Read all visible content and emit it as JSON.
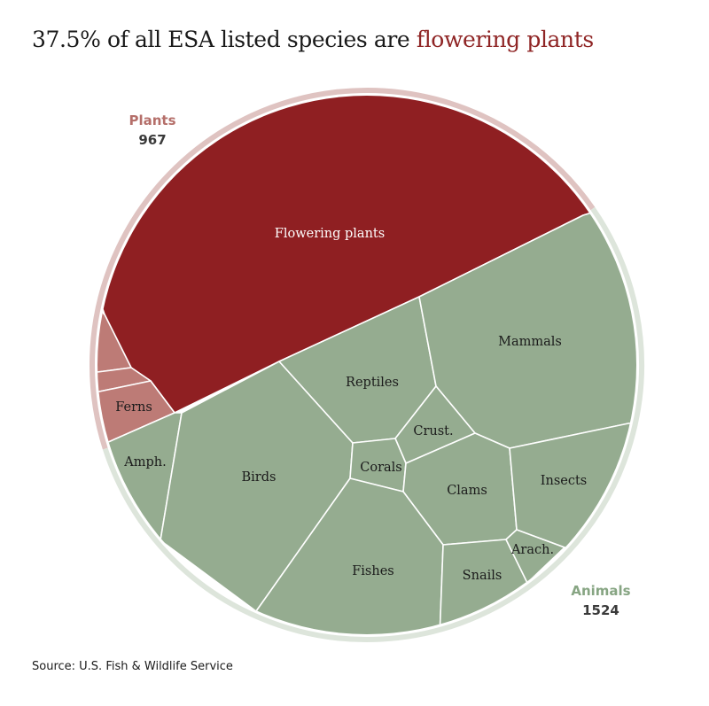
{
  "title": {
    "prefix": "37.5% of all ESA listed species are ",
    "highlight": "flowering plants"
  },
  "source": "Source: U.S. Fish & Wildlife Service",
  "colors": {
    "flowering": "#8f1f22",
    "plants_other": "#bd7b76",
    "animals": "#95ac90",
    "plants_ring": "#dfc3c1",
    "animals_ring": "#dde5db",
    "plants_label": "#b56f6a",
    "animals_label": "#87a583"
  },
  "chart_data": {
    "type": "voronoi-treemap",
    "title": "37.5% of all ESA listed species are flowering plants",
    "groups": [
      {
        "name": "Plants",
        "value": 967
      },
      {
        "name": "Animals",
        "value": 1524
      }
    ],
    "cells": [
      {
        "id": "flowering",
        "group": "Plants",
        "label": "Flowering plants"
      },
      {
        "id": "plant-small-1",
        "group": "Plants",
        "label": ""
      },
      {
        "id": "plant-small-2",
        "group": "Plants",
        "label": ""
      },
      {
        "id": "ferns",
        "group": "Plants",
        "label": "Ferns"
      },
      {
        "id": "amph",
        "group": "Animals",
        "label": "Amph."
      },
      {
        "id": "birds",
        "group": "Animals",
        "label": "Birds"
      },
      {
        "id": "reptiles",
        "group": "Animals",
        "label": "Reptiles"
      },
      {
        "id": "mammals",
        "group": "Animals",
        "label": "Mammals"
      },
      {
        "id": "crust",
        "group": "Animals",
        "label": "Crust."
      },
      {
        "id": "corals",
        "group": "Animals",
        "label": "Corals"
      },
      {
        "id": "clams",
        "group": "Animals",
        "label": "Clams"
      },
      {
        "id": "insects",
        "group": "Animals",
        "label": "Insects"
      },
      {
        "id": "fishes",
        "group": "Animals",
        "label": "Fishes"
      },
      {
        "id": "snails",
        "group": "Animals",
        "label": "Snails"
      },
      {
        "id": "arach",
        "group": "Animals",
        "label": "Arach."
      }
    ]
  }
}
